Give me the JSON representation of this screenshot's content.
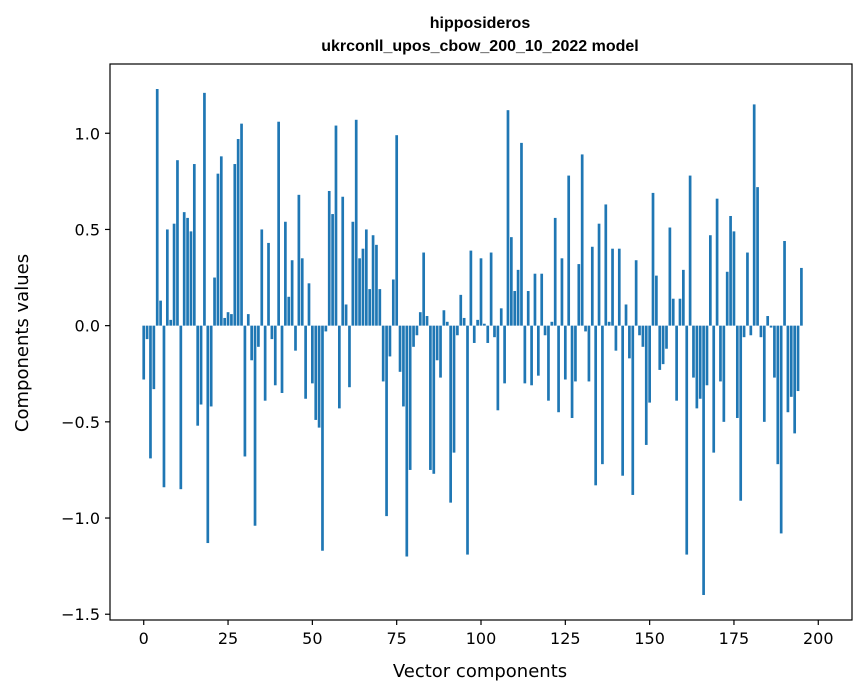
{
  "chart_data": {
    "type": "bar",
    "title_line1": "hipposideros",
    "title_line2": "ukrconll_upos_cbow_200_10_2022 model",
    "xlabel": "Vector components",
    "ylabel": "Components values",
    "xlim": [
      -10,
      210
    ],
    "ylim": [
      -1.53,
      1.36
    ],
    "xticks": [
      0,
      25,
      50,
      75,
      100,
      125,
      150,
      175,
      200
    ],
    "yticks": [
      -1.5,
      -1.0,
      -0.5,
      0.0,
      0.5,
      1.0
    ],
    "ytick_labels": [
      "−1.5",
      "−1.0",
      "−0.5",
      "0.0",
      "0.5",
      "1.0"
    ],
    "xtick_labels": [
      "0",
      "25",
      "50",
      "75",
      "100",
      "125",
      "150",
      "175",
      "200"
    ],
    "bar_color": "#1f77b4",
    "grid": false,
    "values": [
      -0.28,
      -0.07,
      -0.69,
      -0.33,
      1.23,
      0.13,
      -0.84,
      0.5,
      0.03,
      0.53,
      0.86,
      -0.85,
      0.59,
      0.56,
      0.49,
      0.84,
      -0.52,
      -0.41,
      1.21,
      -1.13,
      -0.42,
      0.25,
      0.79,
      0.88,
      0.04,
      0.07,
      0.06,
      0.84,
      0.97,
      1.05,
      -0.68,
      0.06,
      -0.18,
      -1.04,
      -0.11,
      0.5,
      -0.39,
      0.43,
      -0.07,
      -0.31,
      1.06,
      -0.35,
      0.54,
      0.15,
      0.34,
      -0.13,
      0.68,
      0.35,
      -0.38,
      0.22,
      -0.3,
      -0.49,
      -0.53,
      -1.17,
      -0.03,
      0.7,
      0.58,
      1.04,
      -0.43,
      0.67,
      0.11,
      -0.32,
      0.54,
      1.07,
      0.35,
      0.4,
      0.5,
      0.19,
      0.47,
      0.42,
      0.19,
      -0.29,
      -0.99,
      -0.16,
      0.24,
      0.99,
      -0.24,
      -0.42,
      -1.2,
      -0.75,
      -0.11,
      -0.05,
      0.07,
      0.38,
      0.05,
      -0.75,
      -0.77,
      -0.18,
      -0.27,
      0.08,
      0.02,
      -0.92,
      -0.66,
      -0.05,
      0.16,
      0.04,
      -1.19,
      0.39,
      -0.09,
      0.03,
      0.35,
      0.01,
      -0.09,
      0.38,
      -0.06,
      -0.44,
      0.09,
      -0.3,
      1.12,
      0.46,
      0.18,
      0.29,
      0.95,
      -0.3,
      0.18,
      -0.31,
      0.27,
      -0.26,
      0.27,
      -0.05,
      -0.39,
      0.02,
      0.56,
      -0.45,
      0.35,
      -0.28,
      0.78,
      -0.48,
      -0.29,
      0.32,
      0.89,
      -0.03,
      -0.29,
      0.41,
      -0.83,
      0.53,
      -0.72,
      0.63,
      0.02,
      0.4,
      -0.13,
      0.4,
      -0.78,
      0.11,
      -0.17,
      -0.88,
      0.34,
      -0.05,
      -0.11,
      -0.62,
      -0.4,
      0.69,
      0.26,
      -0.23,
      -0.2,
      -0.12,
      0.51,
      0.14,
      -0.39,
      0.14,
      0.29,
      -1.19,
      0.78,
      -0.27,
      -0.43,
      -0.38,
      -1.4,
      -0.31,
      0.47,
      -0.66,
      0.66,
      -0.29,
      -0.5,
      0.28,
      0.57,
      0.49,
      -0.48,
      -0.91,
      -0.06,
      0.38,
      -0.05,
      1.15,
      0.72,
      -0.06,
      -0.5,
      0.05,
      -0.01,
      -0.27,
      -0.72,
      -1.08,
      0.44,
      -0.45,
      -0.37,
      -0.56,
      -0.34,
      0.3
    ]
  }
}
